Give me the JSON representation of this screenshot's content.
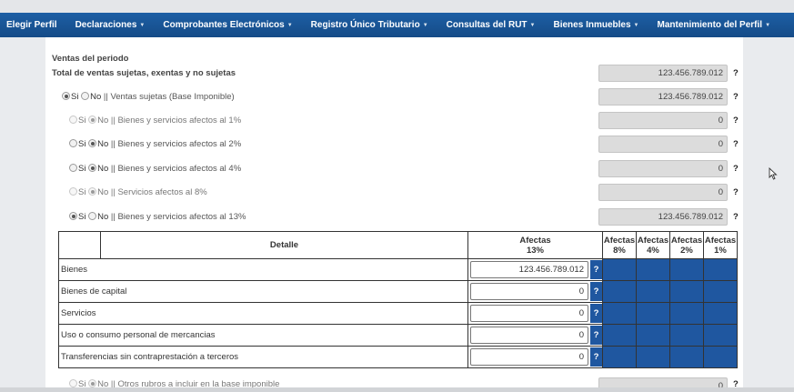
{
  "nav": {
    "items": [
      {
        "label": "Elegir Perfil",
        "dropdown": false
      },
      {
        "label": "Declaraciones",
        "dropdown": true
      },
      {
        "label": "Comprobantes Electrónicos",
        "dropdown": true
      },
      {
        "label": "Registro Único Tributario",
        "dropdown": true
      },
      {
        "label": "Consultas del RUT",
        "dropdown": true
      },
      {
        "label": "Bienes Inmuebles",
        "dropdown": true
      },
      {
        "label": "Mantenimiento del Perfil",
        "dropdown": true
      }
    ]
  },
  "section": {
    "title": "Ventas del periodo",
    "total_label": "Total de ventas sujetas, exentas y no sujetas",
    "total_value": "123.456.789.012",
    "help": "?"
  },
  "radio_text": {
    "si": "Si",
    "no": "No"
  },
  "rows": [
    {
      "label": "|| Ventas sujetas (Base Imponible)",
      "value": "123.456.789.012",
      "selected": "si",
      "enabled": true
    },
    {
      "label": "|| Bienes y servicios afectos al 1%",
      "value": "0",
      "selected": "no",
      "enabled": false
    },
    {
      "label": "|| Bienes y servicios afectos al 2%",
      "value": "0",
      "selected": "no",
      "enabled": true
    },
    {
      "label": "|| Bienes y servicios afectos al 4%",
      "value": "0",
      "selected": "no",
      "enabled": true
    },
    {
      "label": "|| Servicios afectos al 8%",
      "value": "0",
      "selected": "no",
      "enabled": false
    },
    {
      "label": "|| Bienes y servicios afectos al 13%",
      "value": "123.456.789.012",
      "selected": "si",
      "enabled": true
    }
  ],
  "table": {
    "header": {
      "detalle": "Detalle",
      "afectas13_line1": "Afectas",
      "afectas13_line2": "13%",
      "cols": [
        {
          "line1": "Afectas",
          "line2": "8%"
        },
        {
          "line1": "Afectas",
          "line2": "4%"
        },
        {
          "line1": "Afectas",
          "line2": "2%"
        },
        {
          "line1": "Afectas",
          "line2": "1%"
        }
      ]
    },
    "rows": [
      {
        "detalle": "Bienes",
        "value": "123.456.789.012"
      },
      {
        "detalle": "Bienes de capital",
        "value": "0"
      },
      {
        "detalle": "Servicios",
        "value": "0"
      },
      {
        "detalle": "Uso o consumo personal de mercancias",
        "value": "0"
      },
      {
        "detalle": "Transferencias sin contraprestación a terceros",
        "value": "0"
      }
    ]
  },
  "other_row": {
    "label": "|| Otros rubros a incluir en la base imponible",
    "value": "0",
    "selected": "no"
  },
  "colors": {
    "nav": "#1d5fa5",
    "table_blue": "#1f57a0",
    "readonly_field": "#dcdcdc"
  }
}
